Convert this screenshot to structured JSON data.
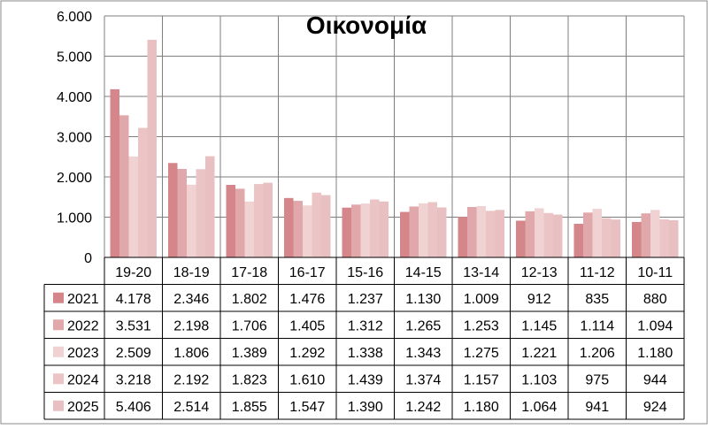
{
  "chart_data": {
    "type": "bar",
    "title": "Οικονομία",
    "categories": [
      "19-20",
      "18-19",
      "17-18",
      "16-17",
      "15-16",
      "14-15",
      "13-14",
      "12-13",
      "11-12",
      "10-11"
    ],
    "ylim": [
      0,
      6000
    ],
    "yticks": [
      0,
      1000,
      2000,
      3000,
      4000,
      5000,
      6000
    ],
    "ytick_labels": [
      "0",
      "1.000",
      "2.000",
      "3.000",
      "4.000",
      "5.000",
      "6.000"
    ],
    "grid": true,
    "legend": "data-table",
    "series": [
      {
        "name": "2021",
        "color": "#d4868a",
        "values": [
          4178,
          2346,
          1802,
          1476,
          1237,
          1130,
          1009,
          912,
          835,
          880
        ],
        "labels": [
          "4.178",
          "2.346",
          "1.802",
          "1.476",
          "1.237",
          "1.130",
          "1.009",
          "912",
          "835",
          "880"
        ]
      },
      {
        "name": "2022",
        "color": "#e0a8aa",
        "values": [
          3531,
          2198,
          1706,
          1405,
          1312,
          1265,
          1253,
          1145,
          1114,
          1094
        ],
        "labels": [
          "3.531",
          "2.198",
          "1.706",
          "1.405",
          "1.312",
          "1.265",
          "1.253",
          "1.145",
          "1.114",
          "1.094"
        ]
      },
      {
        "name": "2023",
        "color": "#f0d2d3",
        "values": [
          2509,
          1806,
          1389,
          1292,
          1338,
          1343,
          1275,
          1221,
          1206,
          1180
        ],
        "labels": [
          "2.509",
          "1.806",
          "1.389",
          "1.292",
          "1.338",
          "1.343",
          "1.275",
          "1.221",
          "1.206",
          "1.180"
        ]
      },
      {
        "name": "2024",
        "color": "#ebc4c6",
        "values": [
          3218,
          2192,
          1823,
          1610,
          1439,
          1374,
          1157,
          1103,
          975,
          944
        ],
        "labels": [
          "3.218",
          "2.192",
          "1.823",
          "1.610",
          "1.439",
          "1.374",
          "1.157",
          "1.103",
          "975",
          "944"
        ]
      },
      {
        "name": "2025",
        "color": "#e8c0c1",
        "values": [
          5406,
          2514,
          1855,
          1547,
          1390,
          1242,
          1180,
          1064,
          941,
          924
        ],
        "labels": [
          "5.406",
          "2.514",
          "1.855",
          "1.547",
          "1.390",
          "1.242",
          "1.180",
          "1.064",
          "941",
          "924"
        ]
      }
    ]
  }
}
